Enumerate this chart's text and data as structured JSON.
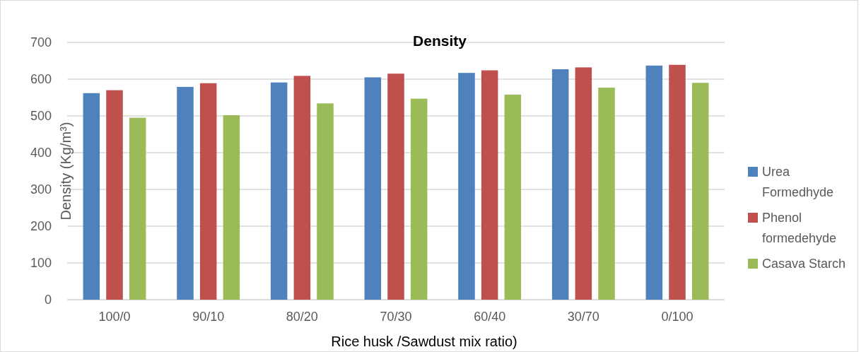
{
  "chart_data": {
    "type": "bar",
    "title": "Density",
    "xlabel": "Rice husk /Sawdust mix ratio)",
    "ylabel": "Density (Kg/m³)",
    "categories": [
      "100/0",
      "90/10",
      "80/20",
      "70/30",
      "60/40",
      "30/70",
      "0/100"
    ],
    "series": [
      {
        "name": "Urea Formedhyde",
        "color": "#4f81bd",
        "values": [
          562,
          579,
          591,
          605,
          617,
          627,
          637
        ]
      },
      {
        "name": "Phenol formedehyde",
        "color": "#c0504d",
        "values": [
          570,
          589,
          609,
          615,
          624,
          632,
          639
        ]
      },
      {
        "name": "Casava Starch",
        "color": "#9bbb59",
        "values": [
          495,
          502,
          534,
          547,
          558,
          577,
          590
        ]
      }
    ],
    "ylim": [
      0,
      700
    ],
    "yticks": [
      0,
      100,
      200,
      300,
      400,
      500,
      600,
      700
    ],
    "grid": "y",
    "legend": "right"
  }
}
